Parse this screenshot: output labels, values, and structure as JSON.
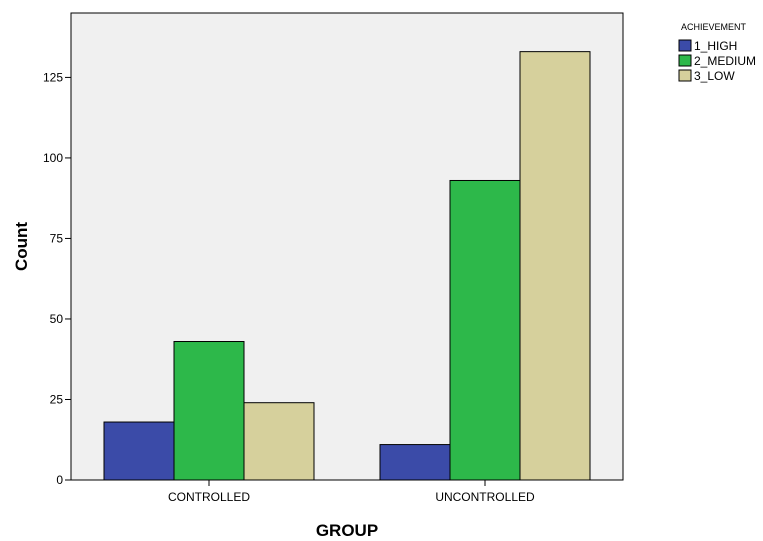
{
  "chart_data": {
    "type": "bar",
    "categories": [
      "CONTROLLED",
      "UNCONTROLLED"
    ],
    "series": [
      {
        "name": "1_HIGH",
        "values": [
          18,
          11
        ],
        "color": "#3b4ba8"
      },
      {
        "name": "2_MEDIUM",
        "values": [
          43,
          93
        ],
        "color": "#2db84a"
      },
      {
        "name": "3_LOW",
        "values": [
          24,
          133
        ],
        "color": "#d6d09c"
      }
    ],
    "legend_title": "ACHIEVEMENT",
    "legend_position": "top-right",
    "xlabel": "GROUP",
    "ylabel": "Count",
    "ylim": [
      0,
      145
    ],
    "yticks": [
      0,
      25,
      50,
      75,
      100,
      125
    ],
    "ytick_labels": [
      "0",
      "25",
      "50",
      "75",
      "100",
      "125"
    ],
    "grid": false,
    "plot_background": "#f0f0f0"
  }
}
